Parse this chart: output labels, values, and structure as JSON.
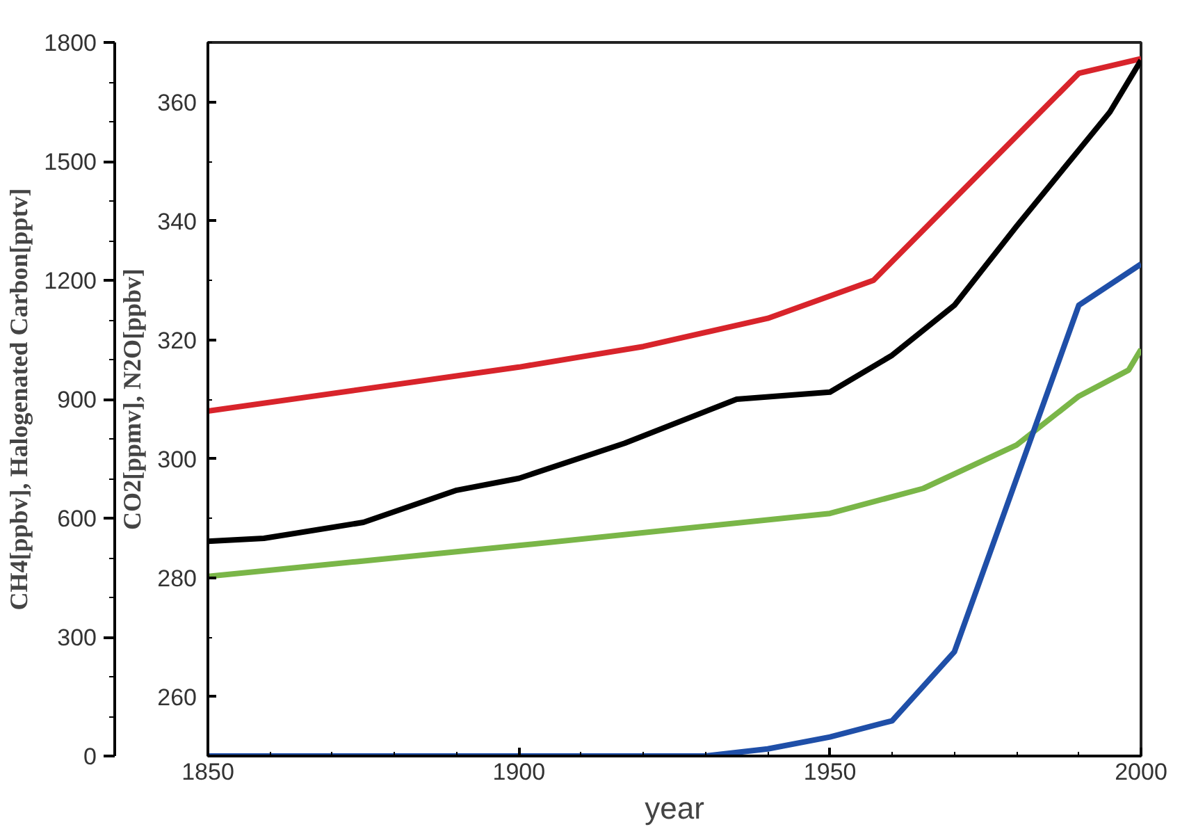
{
  "chart_data": {
    "type": "line",
    "xlabel": "year",
    "ylabel": "CO2[ppmv], N2O[ppbv]",
    "y2label": "CH4[ppbv], Halogenated Carbon[pptv]",
    "xlim": [
      1850,
      2000
    ],
    "xticks": [
      1850,
      1900,
      1950,
      2000
    ],
    "ylim": [
      250,
      370
    ],
    "yticks": [
      260,
      280,
      300,
      320,
      340,
      360
    ],
    "y2lim": [
      0,
      1800
    ],
    "y2ticks": [
      0,
      300,
      600,
      900,
      1200,
      1500,
      1800
    ],
    "grid": false,
    "marker": "none",
    "line_style": "solid",
    "series": [
      {
        "color": "#d8242b",
        "axis": "y2",
        "x": [
          1850,
          1900,
          1920,
          1940,
          1957,
          1990,
          2000
        ],
        "values": [
          870,
          981,
          1033,
          1104,
          1200,
          1722,
          1759
        ]
      },
      {
        "color": "#000000",
        "x": [
          1850,
          1859,
          1875,
          1890,
          1900,
          1917,
          1935,
          1950,
          1960,
          1970,
          1980,
          1990,
          1995,
          2000
        ],
        "values": [
          286.1,
          286.6,
          289.3,
          294.7,
          296.7,
          302.6,
          310,
          311.2,
          317.4,
          325.8,
          339.1,
          351.9,
          358.3,
          367
        ]
      },
      {
        "color": "#7ab648",
        "x": [
          1850,
          1874,
          1900,
          1950,
          1965,
          1980,
          1990,
          1998,
          2000
        ],
        "values": [
          280.2,
          282.7,
          285.4,
          290.8,
          295,
          302.3,
          310.5,
          314.9,
          318.4
        ]
      },
      {
        "color": "#1f4fa8",
        "axis": "y2",
        "x": [
          1850,
          1900,
          1930,
          1940,
          1950,
          1960,
          1970,
          1990,
          2000
        ],
        "values": [
          0,
          0,
          0,
          18,
          48,
          89,
          263,
          1137,
          1241
        ]
      }
    ]
  }
}
